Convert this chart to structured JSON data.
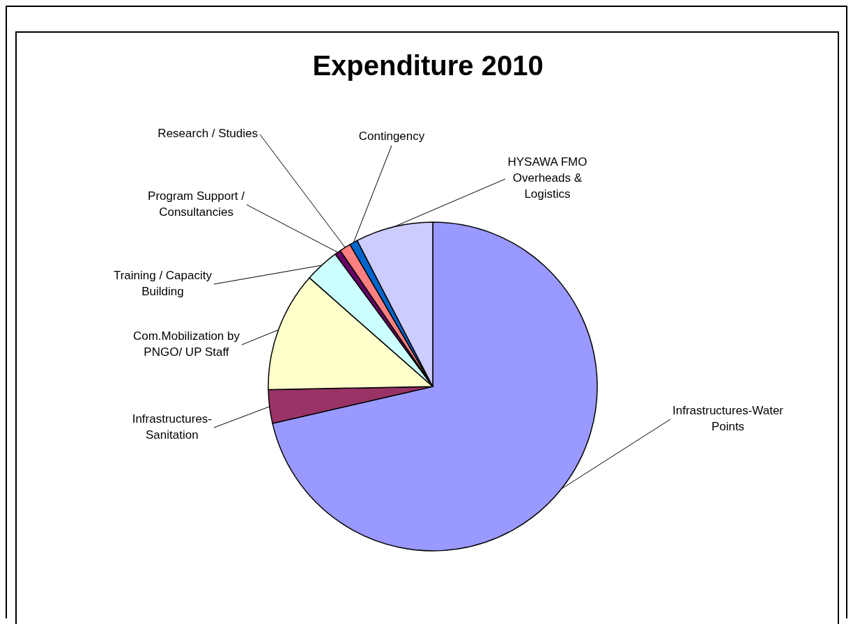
{
  "chart_data": {
    "type": "pie",
    "title": "Expenditure 2010",
    "categories": [
      "Infrastructures-Water Points",
      "Infrastructures-Sanitation",
      "Com.Mobilization by PNGO/ UP Staff",
      "Training / Capacity Building",
      "Program Support / Consultancies",
      "Research / Studies",
      "Contingency",
      "HYSAWA FMO Overheads & Logistics"
    ],
    "values": [
      71.4,
      3.3,
      11.8,
      3.4,
      0.6,
      1.1,
      0.8,
      7.6
    ],
    "colors": [
      "#9999ff",
      "#993366",
      "#ffffcc",
      "#ccffff",
      "#660066",
      "#ff8080",
      "#0066cc",
      "#ccccff"
    ]
  }
}
